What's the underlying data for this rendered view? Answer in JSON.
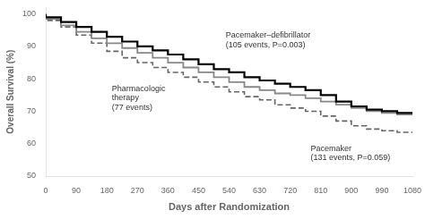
{
  "chart_data": {
    "type": "step",
    "xlabel": "Days after Randomization",
    "ylabel": "Overall Survival (%)",
    "xlim": [
      0,
      1080
    ],
    "ylim": [
      50,
      102
    ],
    "xticks": [
      0,
      90,
      180,
      270,
      360,
      450,
      540,
      630,
      720,
      810,
      900,
      990,
      1080
    ],
    "yticks": [
      50,
      60,
      70,
      80,
      90,
      100
    ],
    "grid": false,
    "x": [
      0,
      45,
      90,
      135,
      180,
      225,
      270,
      315,
      360,
      405,
      450,
      495,
      540,
      585,
      630,
      675,
      720,
      765,
      810,
      855,
      900,
      945,
      990,
      1035,
      1080
    ],
    "series": [
      {
        "color": "#000000",
        "line_style": "solid",
        "values": [
          100,
          99,
          97.5,
          96,
          94.5,
          93,
          91.5,
          90,
          88.8,
          87.5,
          86,
          84.5,
          83,
          82,
          80.5,
          79.5,
          78.5,
          77.5,
          76.5,
          75,
          73,
          71.5,
          70.5,
          70,
          69.5
        ]
      },
      {
        "color": "#888888",
        "line_style": "solid",
        "values": [
          100,
          98.5,
          96.5,
          94.5,
          92.5,
          91,
          89.5,
          88,
          86.5,
          85,
          83.5,
          82,
          80.5,
          79,
          77.5,
          76.5,
          75.5,
          75,
          74,
          73,
          72,
          71,
          70,
          69.5,
          69
        ]
      },
      {
        "color": "#666666",
        "line_style": "dashed",
        "values": [
          100,
          98,
          96,
          93.5,
          91,
          88.5,
          86.5,
          85,
          83.5,
          82,
          80.5,
          79,
          77.5,
          76,
          74.5,
          73.5,
          72,
          71,
          70,
          68.5,
          67,
          65.5,
          64.5,
          64,
          63.5
        ]
      }
    ],
    "annotations": [
      {
        "text": "Pacemaker–defibrillator\n(105 events, P=0.003)",
        "x": 530,
        "y": 92
      },
      {
        "text": "Pharmacologic\ntherapy\n(77 events)",
        "x": 195,
        "y": 74
      },
      {
        "text": "Pacemaker\n(131 events, P=0.059)",
        "x": 780,
        "y": 57
      }
    ]
  }
}
